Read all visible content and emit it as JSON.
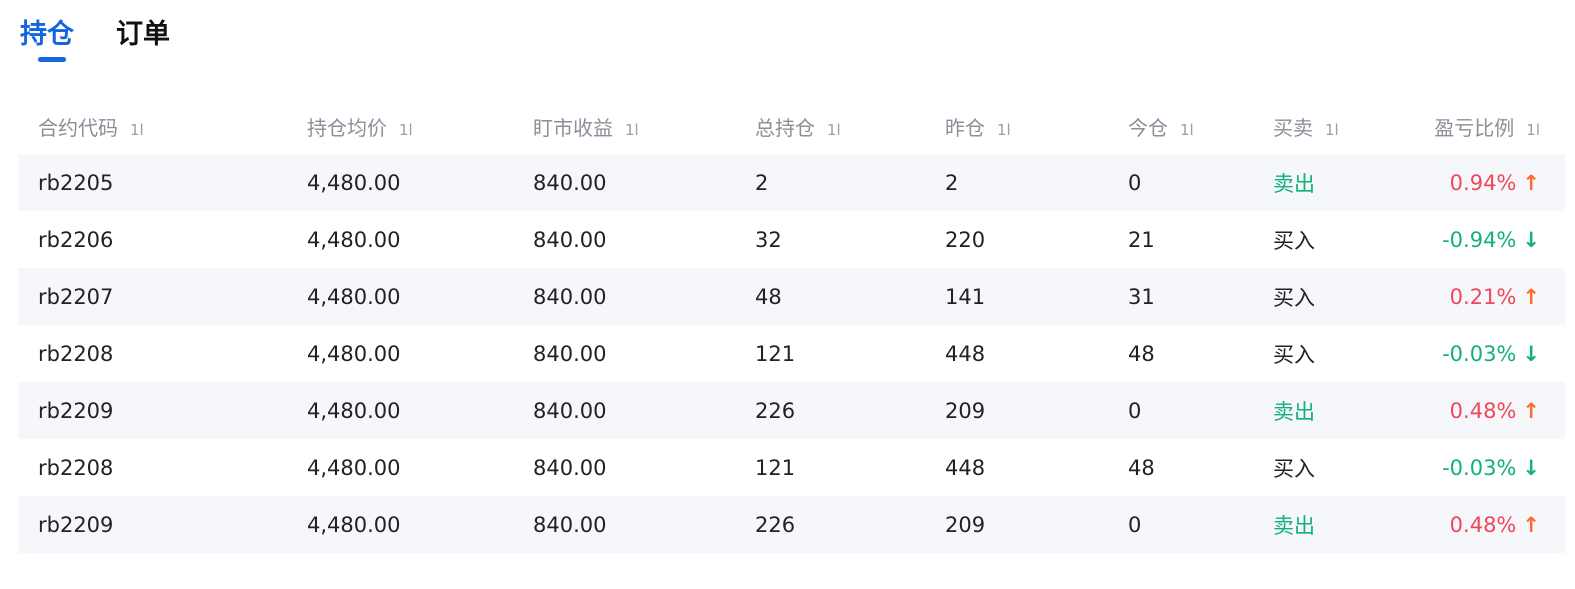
{
  "tabs": [
    {
      "label": "持仓",
      "active": true
    },
    {
      "label": "订单",
      "active": false
    }
  ],
  "columns": [
    "合约代码",
    "持仓均价",
    "盯市收益",
    "总持仓",
    "昨仓",
    "今仓",
    "买卖",
    "盈亏比例"
  ],
  "sort_icon": "1l",
  "colors": {
    "accent": "#1366e0",
    "up": "#f0475b",
    "down": "#13b07a"
  },
  "rows": [
    [
      "rb2205",
      "4,480.00",
      "840.00",
      "2",
      "2",
      "0",
      "卖出",
      "0.94%",
      "up"
    ],
    [
      "rb2206",
      "4,480.00",
      "840.00",
      "32",
      "220",
      "21",
      "买入",
      "-0.94%",
      "down"
    ],
    [
      "rb2207",
      "4,480.00",
      "840.00",
      "48",
      "141",
      "31",
      "买入",
      "0.21%",
      "up"
    ],
    [
      "rb2208",
      "4,480.00",
      "840.00",
      "121",
      "448",
      "48",
      "买入",
      "-0.03%",
      "down"
    ],
    [
      "rb2209",
      "4,480.00",
      "840.00",
      "226",
      "209",
      "0",
      "卖出",
      "0.48%",
      "up"
    ],
    [
      "rb2208",
      "4,480.00",
      "840.00",
      "121",
      "448",
      "48",
      "买入",
      "-0.03%",
      "down"
    ],
    [
      "rb2209",
      "4,480.00",
      "840.00",
      "226",
      "209",
      "0",
      "卖出",
      "0.48%",
      "up"
    ]
  ]
}
